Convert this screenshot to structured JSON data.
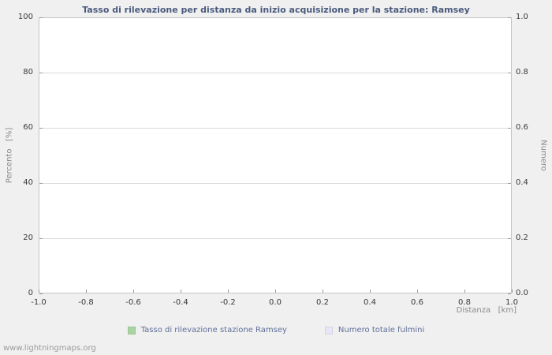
{
  "page": {
    "watermark": "www.lightningmaps.org"
  },
  "chart_data": {
    "type": "line",
    "title": "Tasso di rilevazione per distanza da inizio acquisizione per la stazione: Ramsey",
    "xlabel": "Distanza   [km]",
    "ylabel_left": "Percento   [%]",
    "ylabel_right": "Numero",
    "xlim": [
      -1.0,
      1.0
    ],
    "ylim_left": [
      0,
      100
    ],
    "ylim_right": [
      0.0,
      1.0
    ],
    "x_ticks": [
      "-1.0",
      "-0.8",
      "-0.6",
      "-0.4",
      "-0.2",
      "0.0",
      "0.2",
      "0.4",
      "0.6",
      "0.8",
      "1.0"
    ],
    "y_ticks_left": [
      "0",
      "20",
      "40",
      "60",
      "80",
      "100"
    ],
    "y_ticks_right": [
      "0.0",
      "0.2",
      "0.4",
      "0.6",
      "0.8",
      "1.0"
    ],
    "grid": "horizontal",
    "legend_position": "bottom",
    "series": [
      {
        "name": "Tasso di rilevazione stazione Ramsey",
        "color": "#a8d4a2",
        "values": []
      },
      {
        "name": "Numero totale fulmini",
        "color": "#e6e6f6",
        "values": []
      }
    ]
  }
}
